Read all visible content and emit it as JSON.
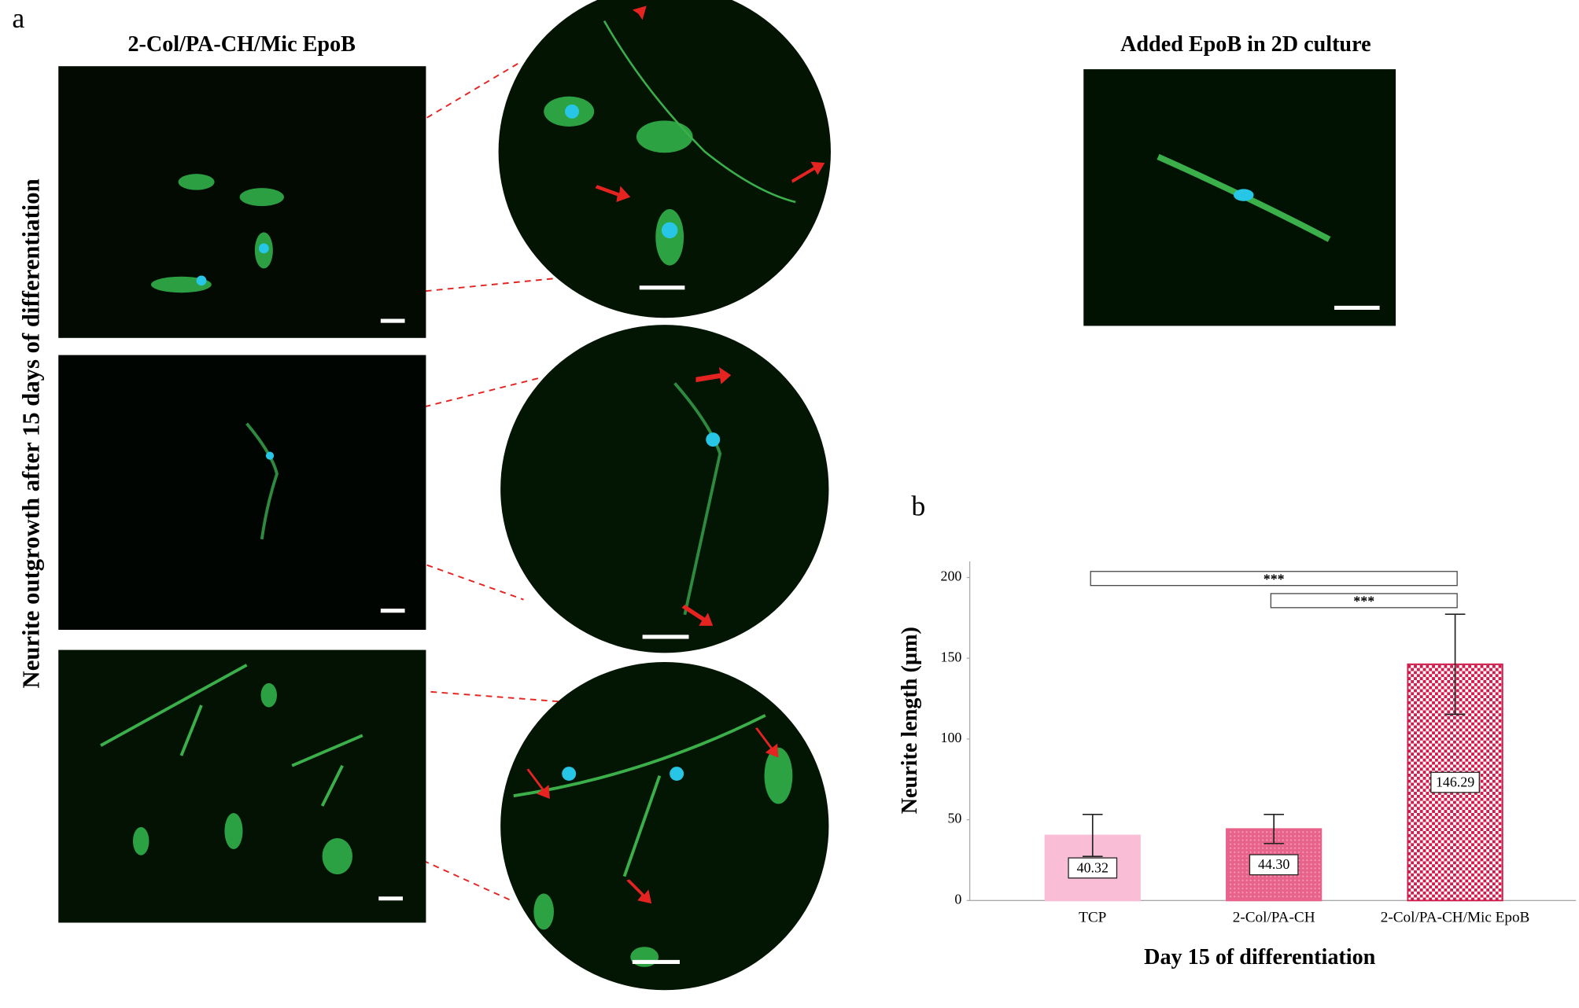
{
  "panel_labels": [
    "a",
    "b"
  ],
  "panel_a": {
    "left_title": "2-Col/PA-CH/Mic EpoB",
    "right_title": "Added EpoB in 2D culture",
    "side_label": "Neurite outgrowth after 15 days of differentiation"
  },
  "chart_data": {
    "type": "bar",
    "categories": [
      "TCP",
      "2-Col/PA-CH",
      "2-Col/PA-CH/Mic EpoB"
    ],
    "values": [
      40.32,
      44.3,
      146.29
    ],
    "value_labels": [
      "40.32",
      "44.30",
      "146.29"
    ],
    "errors": [
      13,
      9,
      31
    ],
    "colors": [
      "#f9bdd6",
      "#e8638c",
      "#d01a4c"
    ],
    "y_label": "Neurite length (µm)",
    "x_label": "Day 15 of differentiation",
    "ylim": [
      0,
      210
    ],
    "yticks": [
      0,
      50,
      100,
      150,
      200
    ],
    "annotations": [
      "***",
      "***"
    ]
  }
}
